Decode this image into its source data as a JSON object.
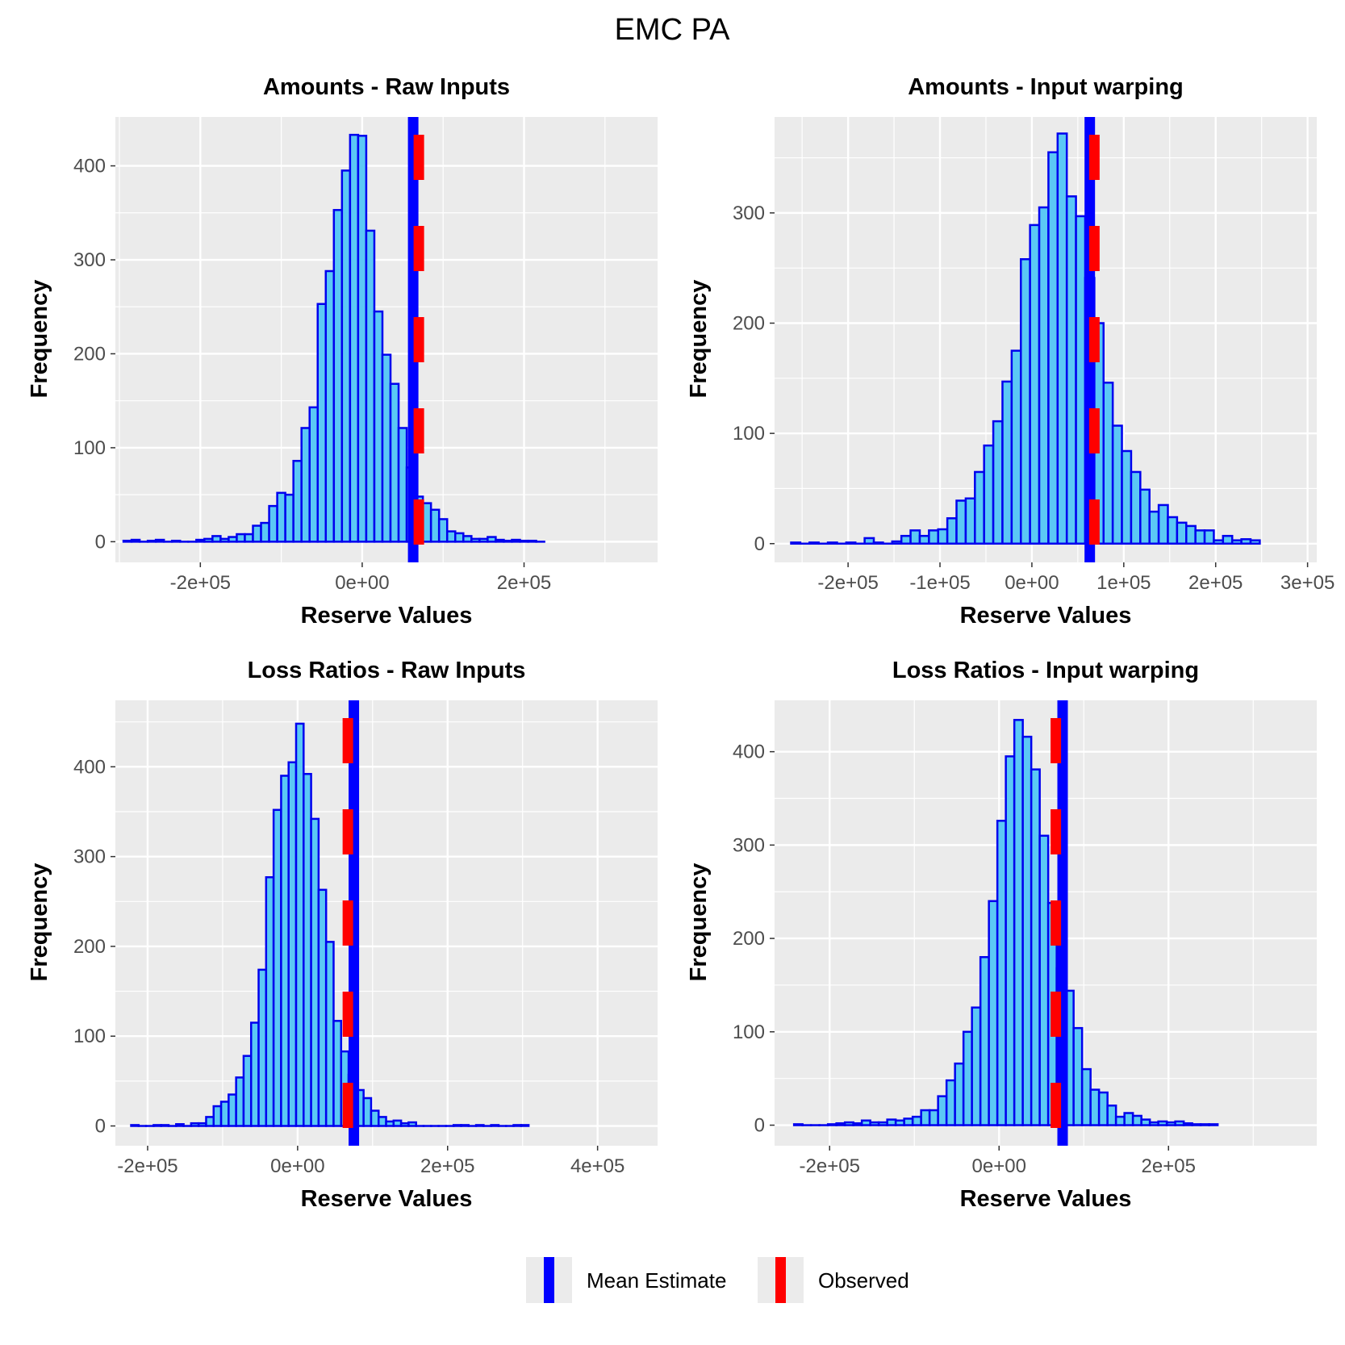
{
  "title": "EMC PA",
  "colors": {
    "panel_bg": "#EBEBEB",
    "grid": "#FFFFFF",
    "bar_fill": "#5BC8F5",
    "bar_outline": "#0000EE",
    "mean_line": "#0000FF",
    "observed_line": "#FF0000",
    "tick_text": "#4D4D4D",
    "tick_mark": "#333333"
  },
  "legend": {
    "items": [
      {
        "label": "Mean Estimate",
        "color": "#0000FF",
        "style": "solid"
      },
      {
        "label": "Observed",
        "color": "#FF0000",
        "style": "dashed"
      }
    ]
  },
  "chart_data": [
    {
      "type": "histogram",
      "title": "Amounts - Raw Inputs",
      "xlabel": "Reserve Values",
      "ylabel": "Frequency",
      "xlim": [
        -305000,
        365000
      ],
      "ylim": [
        -22,
        452
      ],
      "x_ticks": [
        {
          "value": -200000,
          "label": "-2e+05"
        },
        {
          "value": 0,
          "label": "0e+00"
        },
        {
          "value": 200000,
          "label": "2e+05"
        }
      ],
      "x_minor_ticks": [
        -300000,
        -100000,
        100000,
        300000
      ],
      "y_ticks": [
        {
          "value": 0,
          "label": "0"
        },
        {
          "value": 100,
          "label": "100"
        },
        {
          "value": 200,
          "label": "200"
        },
        {
          "value": 300,
          "label": "300"
        },
        {
          "value": 400,
          "label": "400"
        }
      ],
      "y_minor_ticks": [
        50,
        150,
        250,
        350
      ],
      "bin_start": -295000,
      "bin_width": 10000,
      "counts": [
        1,
        2,
        0,
        1,
        2,
        0,
        1,
        0,
        0,
        2,
        3,
        6,
        3,
        5,
        8,
        8,
        17,
        20,
        38,
        52,
        50,
        86,
        121,
        143,
        253,
        288,
        353,
        395,
        433,
        432,
        331,
        245,
        199,
        168,
        121,
        79,
        48,
        41,
        34,
        24,
        11,
        9,
        6,
        3,
        3,
        5,
        2,
        1,
        2,
        1,
        1,
        0
      ],
      "mean_estimate": 63000,
      "observed": 70000
    },
    {
      "type": "histogram",
      "title": "Amounts - Input warping",
      "xlabel": "Reserve Values",
      "ylabel": "Frequency",
      "xlim": [
        -280000,
        310000
      ],
      "ylim": [
        -17,
        387
      ],
      "x_ticks": [
        {
          "value": -200000,
          "label": "-2e+05"
        },
        {
          "value": -100000,
          "label": "-1e+05"
        },
        {
          "value": 0,
          "label": "0e+00"
        },
        {
          "value": 100000,
          "label": "1e+05"
        },
        {
          "value": 200000,
          "label": "2e+05"
        },
        {
          "value": 300000,
          "label": "3e+05"
        }
      ],
      "x_minor_ticks": [
        -250000,
        -150000,
        -50000,
        50000,
        150000,
        250000
      ],
      "y_ticks": [
        {
          "value": 0,
          "label": "0"
        },
        {
          "value": 100,
          "label": "100"
        },
        {
          "value": 200,
          "label": "200"
        },
        {
          "value": 300,
          "label": "300"
        }
      ],
      "y_minor_ticks": [
        50,
        150,
        250,
        350
      ],
      "bin_start": -262000,
      "bin_width": 10000,
      "counts": [
        1,
        0,
        1,
        0,
        1,
        0,
        1,
        0,
        5,
        1,
        0,
        2,
        7,
        12,
        7,
        12,
        13,
        23,
        39,
        41,
        65,
        89,
        111,
        147,
        175,
        258,
        289,
        305,
        355,
        372,
        315,
        297,
        241,
        200,
        146,
        107,
        84,
        65,
        49,
        29,
        35,
        24,
        19,
        16,
        12,
        12,
        3,
        7,
        3,
        4,
        3
      ],
      "mean_estimate": 63000,
      "observed": 68000
    },
    {
      "type": "histogram",
      "title": "Loss Ratios - Raw Inputs",
      "xlabel": "Reserve Values",
      "ylabel": "Frequency",
      "xlim": [
        -243000,
        480000
      ],
      "ylim": [
        -22,
        474
      ],
      "x_ticks": [
        {
          "value": -200000,
          "label": "-2e+05"
        },
        {
          "value": 0,
          "label": "0e+00"
        },
        {
          "value": 200000,
          "label": "2e+05"
        },
        {
          "value": 400000,
          "label": "4e+05"
        }
      ],
      "x_minor_ticks": [
        -100000,
        100000,
        300000
      ],
      "y_ticks": [
        {
          "value": 0,
          "label": "0"
        },
        {
          "value": 100,
          "label": "100"
        },
        {
          "value": 200,
          "label": "200"
        },
        {
          "value": 300,
          "label": "300"
        },
        {
          "value": 400,
          "label": "400"
        }
      ],
      "y_minor_ticks": [
        50,
        150,
        250,
        350,
        450
      ],
      "bin_start": -222000,
      "bin_width": 10000,
      "counts": [
        1,
        0,
        0,
        1,
        1,
        0,
        2,
        0,
        3,
        3,
        10,
        22,
        27,
        35,
        54,
        78,
        115,
        174,
        277,
        352,
        390,
        405,
        448,
        392,
        342,
        263,
        205,
        117,
        83,
        57,
        40,
        31,
        17,
        10,
        5,
        6,
        3,
        4,
        0,
        0,
        0,
        0,
        0,
        1,
        1,
        0,
        1,
        0,
        1,
        0,
        0,
        1,
        1
      ],
      "mean_estimate": 75000,
      "observed": 67000
    },
    {
      "type": "histogram",
      "title": "Loss Ratios - Input warping",
      "xlabel": "Reserve Values",
      "ylabel": "Frequency",
      "xlim": [
        -265000,
        375000
      ],
      "ylim": [
        -22,
        455
      ],
      "x_ticks": [
        {
          "value": -200000,
          "label": "-2e+05"
        },
        {
          "value": 0,
          "label": "0e+00"
        },
        {
          "value": 200000,
          "label": "2e+05"
        }
      ],
      "x_minor_ticks": [
        -300000,
        -100000,
        100000,
        300000
      ],
      "y_ticks": [
        {
          "value": 0,
          "label": "0"
        },
        {
          "value": 100,
          "label": "100"
        },
        {
          "value": 200,
          "label": "200"
        },
        {
          "value": 300,
          "label": "300"
        },
        {
          "value": 400,
          "label": "400"
        }
      ],
      "y_minor_ticks": [
        50,
        150,
        250,
        350
      ],
      "bin_start": -242000,
      "bin_width": 10000,
      "counts": [
        1,
        0,
        0,
        0,
        1,
        2,
        3,
        2,
        5,
        3,
        3,
        6,
        5,
        7,
        9,
        16,
        16,
        31,
        48,
        66,
        100,
        126,
        180,
        240,
        326,
        395,
        434,
        416,
        381,
        310,
        238,
        168,
        144,
        104,
        60,
        38,
        35,
        21,
        9,
        13,
        10,
        6,
        3,
        4,
        3,
        4,
        2,
        1,
        1,
        1
      ],
      "mean_estimate": 75000,
      "observed": 67000
    }
  ]
}
